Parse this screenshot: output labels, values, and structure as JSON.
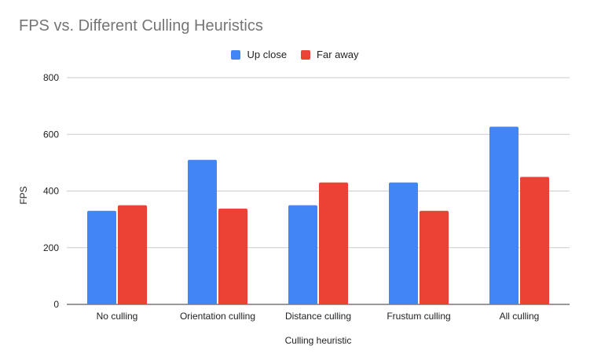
{
  "chart_data": {
    "type": "bar",
    "title": "FPS vs. Different Culling Heuristics",
    "xlabel": "Culling heuristic",
    "ylabel": "FPS",
    "categories": [
      "No culling",
      "Orientation culling",
      "Distance culling",
      "Frustum culling",
      "All culling"
    ],
    "series": [
      {
        "name": "Up close",
        "color": "#4285f4",
        "values": [
          330,
          510,
          350,
          430,
          627
        ]
      },
      {
        "name": "Far away",
        "color": "#ea4335",
        "values": [
          350,
          338,
          430,
          330,
          450
        ]
      }
    ],
    "ylim": [
      0,
      800
    ],
    "yticks": [
      "0",
      "200",
      "400",
      "600",
      "800"
    ],
    "grid": true,
    "legend_position": "top-center"
  }
}
